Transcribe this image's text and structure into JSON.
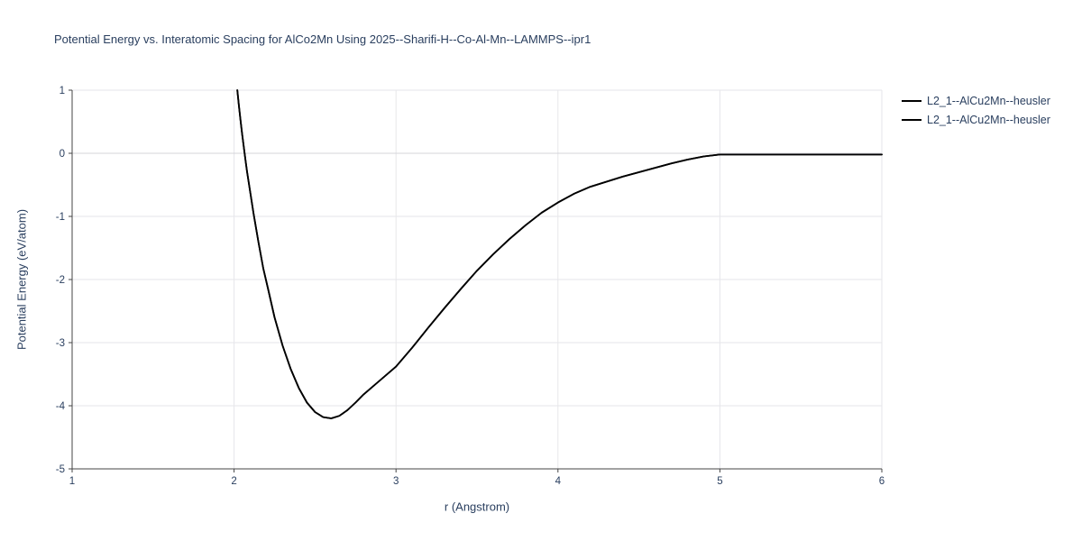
{
  "colors": {
    "background": "#ffffff",
    "text": "#2a3f5f",
    "grid": "#e6e6ea",
    "zeroline": "#d4d4da",
    "axis_line": "#444444",
    "line": "#000000"
  },
  "chart_data": {
    "type": "line",
    "title": "Potential Energy vs. Interatomic Spacing for AlCo2Mn Using 2025--Sharifi-H--Co-Al-Mn--LAMMPS--ipr1",
    "xlabel": "r (Angstrom)",
    "ylabel": "Potential Energy (eV/atom)",
    "xlim": [
      1,
      6
    ],
    "ylim": [
      -5,
      1
    ],
    "x_ticks": [
      1,
      2,
      3,
      4,
      5,
      6
    ],
    "y_ticks": [
      -5,
      -4,
      -3,
      -2,
      -1,
      0,
      1
    ],
    "grid": true,
    "legend_position": "top-right-outside",
    "series": [
      {
        "name": "L2_1--AlCu2Mn--heusler",
        "color": "#000000",
        "x": [
          2.02,
          2.03,
          2.04,
          2.05,
          2.06,
          2.07,
          2.08,
          2.1,
          2.12,
          2.15,
          2.18,
          2.21,
          2.25,
          2.3,
          2.35,
          2.4,
          2.45,
          2.5,
          2.55,
          2.6,
          2.65,
          2.7,
          2.75,
          2.8,
          2.9,
          3.0,
          3.1,
          3.2,
          3.3,
          3.4,
          3.5,
          3.6,
          3.7,
          3.8,
          3.9,
          4.0,
          4.1,
          4.2,
          4.3,
          4.4,
          4.5,
          4.6,
          4.7,
          4.8,
          4.9,
          5.0,
          5.2,
          5.5,
          6.0
        ],
        "y": [
          1.0,
          0.75,
          0.52,
          0.3,
          0.1,
          -0.1,
          -0.29,
          -0.62,
          -0.95,
          -1.4,
          -1.82,
          -2.15,
          -2.6,
          -3.05,
          -3.42,
          -3.72,
          -3.95,
          -4.1,
          -4.18,
          -4.2,
          -4.16,
          -4.07,
          -3.95,
          -3.82,
          -3.6,
          -3.38,
          -3.08,
          -2.76,
          -2.45,
          -2.15,
          -1.86,
          -1.6,
          -1.36,
          -1.14,
          -0.94,
          -0.78,
          -0.64,
          -0.53,
          -0.45,
          -0.37,
          -0.3,
          -0.23,
          -0.16,
          -0.1,
          -0.05,
          -0.02,
          -0.02,
          -0.02,
          -0.02
        ]
      },
      {
        "name": "L2_1--AlCu2Mn--heusler",
        "color": "#000000",
        "x": [
          2.02,
          2.03,
          2.04,
          2.05,
          2.06,
          2.07,
          2.08,
          2.1,
          2.12,
          2.15,
          2.18,
          2.21,
          2.25,
          2.3,
          2.35,
          2.4,
          2.45,
          2.5,
          2.55,
          2.6,
          2.65,
          2.7,
          2.75,
          2.8,
          2.9,
          3.0,
          3.1,
          3.2,
          3.3,
          3.4,
          3.5,
          3.6,
          3.7,
          3.8,
          3.9,
          4.0,
          4.1,
          4.2,
          4.3,
          4.4,
          4.5,
          4.6,
          4.7,
          4.8,
          4.9,
          5.0,
          5.2,
          5.5,
          6.0
        ],
        "y": [
          1.0,
          0.75,
          0.52,
          0.3,
          0.1,
          -0.1,
          -0.29,
          -0.62,
          -0.95,
          -1.4,
          -1.82,
          -2.15,
          -2.6,
          -3.05,
          -3.42,
          -3.72,
          -3.95,
          -4.1,
          -4.18,
          -4.2,
          -4.16,
          -4.07,
          -3.95,
          -3.82,
          -3.6,
          -3.38,
          -3.08,
          -2.76,
          -2.45,
          -2.15,
          -1.86,
          -1.6,
          -1.36,
          -1.14,
          -0.94,
          -0.78,
          -0.64,
          -0.53,
          -0.45,
          -0.37,
          -0.3,
          -0.23,
          -0.16,
          -0.1,
          -0.05,
          -0.02,
          -0.02,
          -0.02,
          -0.02
        ]
      }
    ]
  }
}
